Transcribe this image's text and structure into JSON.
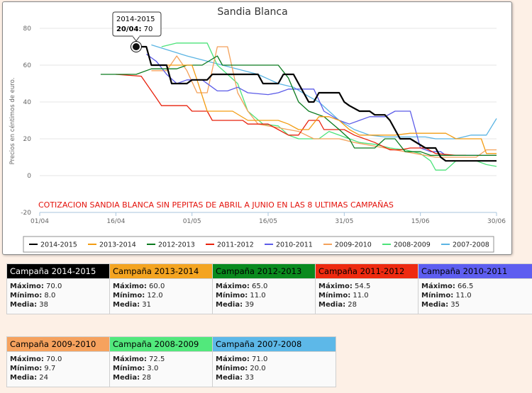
{
  "chart_data": {
    "type": "line",
    "title": "Sandia Blanca",
    "ylabel": "Precios en céntimos de euro.",
    "xlabel": "",
    "annotation": "COTIZACION SANDIA BLANCA SIN PEPITAS DE ABRIL A JUNIO EN LAS 8 ULTIMAS CAMPAÑAS",
    "ylim": [
      -20,
      80
    ],
    "yticks": [
      -20,
      0,
      20,
      40,
      60,
      80
    ],
    "ytick_labels": [
      "-20",
      "0",
      "20",
      "40",
      "60",
      "80"
    ],
    "x_start": "2024-04-01",
    "xticks": [
      "2024-04-01",
      "2024-04-16",
      "2024-05-01",
      "2024-05-16",
      "2024-05-31",
      "2024-06-15",
      "2024-06-30"
    ],
    "xtick_labels": [
      "01/04",
      "16/04",
      "01/05",
      "16/05",
      "31/05",
      "15/06",
      "30/06"
    ],
    "legend_position": "bottom",
    "tooltip": {
      "title": "2014-2015",
      "date": "20/04:",
      "value": "70",
      "x": "2024-04-20",
      "y": 70
    },
    "series": [
      {
        "name": "2014-2015",
        "color": "#000000",
        "width": 2.2,
        "points": [
          [
            "2024-04-20",
            70
          ],
          [
            "2024-04-21",
            70
          ],
          [
            "2024-04-22",
            70
          ],
          [
            "2024-04-23",
            60
          ],
          [
            "2024-04-26",
            60
          ],
          [
            "2024-04-27",
            50
          ],
          [
            "2024-04-30",
            50
          ],
          [
            "2024-05-01",
            52
          ],
          [
            "2024-05-04",
            52
          ],
          [
            "2024-05-05",
            55
          ],
          [
            "2024-05-14",
            55
          ],
          [
            "2024-05-15",
            50
          ],
          [
            "2024-05-18",
            50
          ],
          [
            "2024-05-19",
            55
          ],
          [
            "2024-05-21",
            55
          ],
          [
            "2024-05-22",
            50
          ],
          [
            "2024-05-23",
            45
          ],
          [
            "2024-05-24",
            40
          ],
          [
            "2024-05-25",
            40
          ],
          [
            "2024-05-26",
            45
          ],
          [
            "2024-05-30",
            45
          ],
          [
            "2024-05-31",
            40
          ],
          [
            "2024-06-01",
            38
          ],
          [
            "2024-06-03",
            35
          ],
          [
            "2024-06-05",
            35
          ],
          [
            "2024-06-06",
            33
          ],
          [
            "2024-06-08",
            33
          ],
          [
            "2024-06-09",
            30
          ],
          [
            "2024-06-11",
            20
          ],
          [
            "2024-06-13",
            20
          ],
          [
            "2024-06-16",
            15
          ],
          [
            "2024-06-18",
            15
          ],
          [
            "2024-06-19",
            10
          ],
          [
            "2024-06-20",
            8
          ],
          [
            "2024-06-30",
            8
          ]
        ]
      },
      {
        "name": "2013-2014",
        "color": "#f39c12",
        "width": 1.3,
        "points": [
          [
            "2024-04-26",
            60
          ],
          [
            "2024-05-01",
            60
          ],
          [
            "2024-05-02",
            52
          ],
          [
            "2024-05-04",
            35
          ],
          [
            "2024-05-09",
            35
          ],
          [
            "2024-05-12",
            30
          ],
          [
            "2024-05-18",
            30
          ],
          [
            "2024-05-20",
            28
          ],
          [
            "2024-05-22",
            25
          ],
          [
            "2024-05-24",
            25
          ],
          [
            "2024-05-26",
            32
          ],
          [
            "2024-05-28",
            32
          ],
          [
            "2024-05-30",
            30
          ],
          [
            "2024-06-01",
            25
          ],
          [
            "2024-06-03",
            22
          ],
          [
            "2024-06-10",
            22
          ],
          [
            "2024-06-13",
            23
          ],
          [
            "2024-06-20",
            23
          ],
          [
            "2024-06-22",
            20
          ],
          [
            "2024-06-27",
            20
          ],
          [
            "2024-06-28",
            12
          ],
          [
            "2024-06-30",
            12
          ]
        ]
      },
      {
        "name": "2012-2013",
        "color": "#0a7a1e",
        "width": 1.3,
        "points": [
          [
            "2024-04-13",
            55
          ],
          [
            "2024-04-20",
            55
          ],
          [
            "2024-04-23",
            58
          ],
          [
            "2024-04-28",
            58
          ],
          [
            "2024-04-30",
            60
          ],
          [
            "2024-05-03",
            60
          ],
          [
            "2024-05-06",
            65
          ],
          [
            "2024-05-07",
            60
          ],
          [
            "2024-05-18",
            60
          ],
          [
            "2024-05-20",
            53
          ],
          [
            "2024-05-22",
            40
          ],
          [
            "2024-05-24",
            35
          ],
          [
            "2024-05-27",
            32
          ],
          [
            "2024-05-30",
            25
          ],
          [
            "2024-06-01",
            20
          ],
          [
            "2024-06-02",
            15
          ],
          [
            "2024-06-06",
            15
          ],
          [
            "2024-06-08",
            20
          ],
          [
            "2024-06-10",
            20
          ],
          [
            "2024-06-12",
            13
          ],
          [
            "2024-06-15",
            13
          ],
          [
            "2024-06-17",
            11
          ],
          [
            "2024-06-30",
            11
          ]
        ]
      },
      {
        "name": "2011-2012",
        "color": "#e8210c",
        "width": 1.3,
        "points": [
          [
            "2024-04-16",
            55
          ],
          [
            "2024-04-21",
            54
          ],
          [
            "2024-04-24",
            42
          ],
          [
            "2024-04-25",
            38
          ],
          [
            "2024-04-30",
            38
          ],
          [
            "2024-05-01",
            35
          ],
          [
            "2024-05-04",
            35
          ],
          [
            "2024-05-05",
            30
          ],
          [
            "2024-05-11",
            30
          ],
          [
            "2024-05-12",
            28
          ],
          [
            "2024-05-16",
            28
          ],
          [
            "2024-05-18",
            25
          ],
          [
            "2024-05-20",
            22
          ],
          [
            "2024-05-22",
            22
          ],
          [
            "2024-05-24",
            30
          ],
          [
            "2024-05-26",
            30
          ],
          [
            "2024-05-27",
            25
          ],
          [
            "2024-05-31",
            25
          ],
          [
            "2024-06-02",
            22
          ],
          [
            "2024-06-06",
            18
          ],
          [
            "2024-06-09",
            14
          ],
          [
            "2024-06-11",
            14
          ],
          [
            "2024-06-13",
            15
          ],
          [
            "2024-06-16",
            15
          ],
          [
            "2024-06-18",
            12
          ],
          [
            "2024-06-22",
            11
          ],
          [
            "2024-06-24",
            11
          ]
        ]
      },
      {
        "name": "2010-2011",
        "color": "#5b5be8",
        "width": 1.3,
        "points": [
          [
            "2024-04-22",
            66
          ],
          [
            "2024-04-24",
            62
          ],
          [
            "2024-04-26",
            55
          ],
          [
            "2024-04-28",
            50
          ],
          [
            "2024-04-30",
            52
          ],
          [
            "2024-05-03",
            52
          ],
          [
            "2024-05-06",
            46
          ],
          [
            "2024-05-08",
            46
          ],
          [
            "2024-05-10",
            48
          ],
          [
            "2024-05-12",
            45
          ],
          [
            "2024-05-16",
            44
          ],
          [
            "2024-05-18",
            45
          ],
          [
            "2024-05-20",
            47
          ],
          [
            "2024-05-25",
            47
          ],
          [
            "2024-05-27",
            35
          ],
          [
            "2024-05-30",
            30
          ],
          [
            "2024-06-01",
            28
          ],
          [
            "2024-06-03",
            30
          ],
          [
            "2024-06-05",
            32
          ],
          [
            "2024-06-08",
            32
          ],
          [
            "2024-06-10",
            35
          ],
          [
            "2024-06-13",
            35
          ],
          [
            "2024-06-15",
            15
          ],
          [
            "2024-06-17",
            13
          ],
          [
            "2024-06-19",
            13
          ],
          [
            "2024-06-20",
            11
          ],
          [
            "2024-06-30",
            11
          ]
        ]
      },
      {
        "name": "2009-2010",
        "color": "#f4a15a",
        "width": 1.3,
        "points": [
          [
            "2024-04-23",
            57
          ],
          [
            "2024-04-26",
            57
          ],
          [
            "2024-04-28",
            65
          ],
          [
            "2024-04-30",
            57
          ],
          [
            "2024-05-02",
            45
          ],
          [
            "2024-05-04",
            45
          ],
          [
            "2024-05-06",
            70
          ],
          [
            "2024-05-08",
            70
          ],
          [
            "2024-05-10",
            45
          ],
          [
            "2024-05-12",
            35
          ],
          [
            "2024-05-14",
            28
          ],
          [
            "2024-05-18",
            26
          ],
          [
            "2024-05-22",
            24
          ],
          [
            "2024-05-25",
            20
          ],
          [
            "2024-05-30",
            20
          ],
          [
            "2024-06-02",
            18
          ],
          [
            "2024-06-06",
            16
          ],
          [
            "2024-06-10",
            14
          ],
          [
            "2024-06-14",
            12
          ],
          [
            "2024-06-18",
            10
          ],
          [
            "2024-06-22",
            10
          ],
          [
            "2024-06-26",
            10
          ],
          [
            "2024-06-28",
            14
          ],
          [
            "2024-06-30",
            14
          ]
        ]
      },
      {
        "name": "2008-2009",
        "color": "#4ce37a",
        "width": 1.3,
        "points": [
          [
            "2024-04-25",
            70
          ],
          [
            "2024-04-28",
            72
          ],
          [
            "2024-05-04",
            72
          ],
          [
            "2024-05-06",
            60
          ],
          [
            "2024-05-10",
            50
          ],
          [
            "2024-05-12",
            35
          ],
          [
            "2024-05-15",
            28
          ],
          [
            "2024-05-18",
            27
          ],
          [
            "2024-05-20",
            22
          ],
          [
            "2024-05-22",
            20
          ],
          [
            "2024-05-26",
            20
          ],
          [
            "2024-05-28",
            24
          ],
          [
            "2024-06-01",
            20
          ],
          [
            "2024-06-03",
            18
          ],
          [
            "2024-06-06",
            17
          ],
          [
            "2024-06-09",
            15
          ],
          [
            "2024-06-12",
            14
          ],
          [
            "2024-06-15",
            12
          ],
          [
            "2024-06-17",
            8
          ],
          [
            "2024-06-18",
            3
          ],
          [
            "2024-06-20",
            3
          ],
          [
            "2024-06-22",
            8
          ],
          [
            "2024-06-26",
            8
          ],
          [
            "2024-06-28",
            6
          ],
          [
            "2024-06-30",
            5
          ]
        ]
      },
      {
        "name": "2007-2008",
        "color": "#5ab4e3",
        "width": 1.3,
        "points": [
          [
            "2024-04-23",
            71
          ],
          [
            "2024-04-30",
            65
          ],
          [
            "2024-05-07",
            60
          ],
          [
            "2024-05-14",
            55
          ],
          [
            "2024-05-18",
            50
          ],
          [
            "2024-05-21",
            48
          ],
          [
            "2024-05-24",
            43
          ],
          [
            "2024-05-26",
            40
          ],
          [
            "2024-05-28",
            35
          ],
          [
            "2024-05-30",
            30
          ],
          [
            "2024-06-02",
            25
          ],
          [
            "2024-06-05",
            22
          ],
          [
            "2024-06-08",
            21
          ],
          [
            "2024-06-12",
            21
          ],
          [
            "2024-06-16",
            21
          ],
          [
            "2024-06-18",
            20
          ],
          [
            "2024-06-22",
            20
          ],
          [
            "2024-06-25",
            22
          ],
          [
            "2024-06-28",
            22
          ],
          [
            "2024-06-30",
            31
          ]
        ]
      }
    ]
  },
  "cards": [
    {
      "title": "Campaña 2014-2015",
      "bg": "#000000",
      "fg": "#ffffff",
      "max": "70.0",
      "min": "8.0",
      "media": "38"
    },
    {
      "title": "Campaña 2013-2014",
      "bg": "#f4a420",
      "fg": "#000000",
      "max": "60.0",
      "min": "12.0",
      "media": "31"
    },
    {
      "title": "Campaña 2012-2013",
      "bg": "#0a8a1e",
      "fg": "#000000",
      "max": "65.0",
      "min": "11.0",
      "media": "39"
    },
    {
      "title": "Campaña 2011-2012",
      "bg": "#ee2a10",
      "fg": "#000000",
      "max": "54.5",
      "min": "11.0",
      "media": "28"
    },
    {
      "title": "Campaña 2010-2011",
      "bg": "#5e5ef0",
      "fg": "#000000",
      "max": "66.5",
      "min": "11.0",
      "media": "35"
    },
    {
      "title": "Campaña 2009-2010",
      "bg": "#f6a25e",
      "fg": "#000000",
      "max": "70.0",
      "min": "9.7",
      "media": "24"
    },
    {
      "title": "Campaña 2008-2009",
      "bg": "#52e87c",
      "fg": "#000000",
      "max": "72.5",
      "min": "3.0",
      "media": "28"
    },
    {
      "title": "Campaña 2007-2008",
      "bg": "#5db8e8",
      "fg": "#000000",
      "max": "71.0",
      "min": "20.0",
      "media": "33"
    }
  ],
  "labels": {
    "max": "Máximo:",
    "min": "Mínimo:",
    "media": "Media:"
  }
}
